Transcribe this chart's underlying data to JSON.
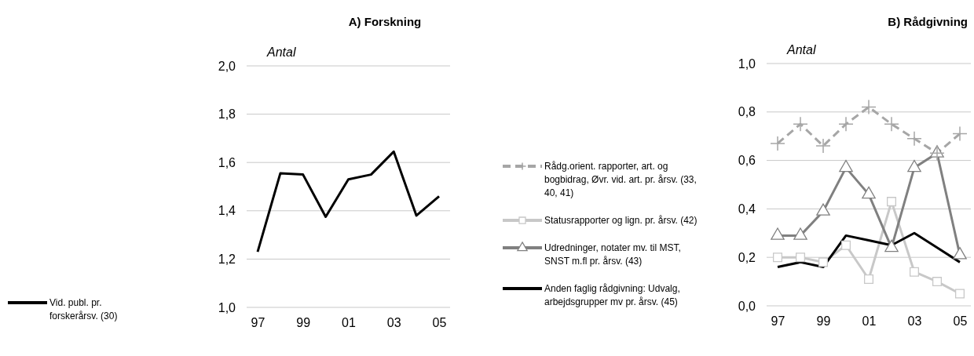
{
  "chart_data": [
    {
      "type": "line",
      "title": "A) Forskning",
      "ylabel": "Antal",
      "categories": [
        "97",
        null,
        "99",
        null,
        "01",
        null,
        "03",
        null,
        "05"
      ],
      "series": [
        {
          "name": "Vid. publ. pr. forskerårsv. (30)",
          "color": "#000000",
          "values": [
            1.23,
            1.555,
            1.55,
            1.375,
            1.53,
            1.55,
            1.645,
            1.38,
            1.46
          ]
        }
      ],
      "ylim": [
        1,
        2
      ],
      "yticks": [
        {
          "value": 1,
          "label": "1,0"
        },
        {
          "value": 1.2,
          "label": "1,2"
        },
        {
          "value": 1.4,
          "label": "1,4"
        },
        {
          "value": 1.6,
          "label": "1,6"
        },
        {
          "value": 1.8,
          "label": "1,8"
        },
        {
          "value": 2,
          "label": "2,0"
        }
      ],
      "grid": "y",
      "legend": "left"
    },
    {
      "type": "line",
      "title": "B) Rådgivning",
      "ylabel": "Antal",
      "categories": [
        "97",
        null,
        "99",
        null,
        "01",
        null,
        "03",
        null,
        "05"
      ],
      "series": [
        {
          "name": "Rådg.orient. rapporter, art. og bogbidrag, Øvr. vid. art. pr. årsv. (33, 40, 41)",
          "color": "#a6a6a6",
          "marker": "cross",
          "line_style": "dashed",
          "values": [
            0.67,
            0.75,
            0.66,
            0.75,
            0.82,
            0.75,
            0.69,
            0.63,
            0.71
          ]
        },
        {
          "name": "Statusrapporter og lign. pr. årsv. (42)",
          "color": "#c8c8c8",
          "marker": "square",
          "values": [
            0.2,
            0.2,
            0.18,
            0.25,
            0.11,
            0.43,
            0.14,
            0.1,
            0.05
          ]
        },
        {
          "name": "Udredninger, notater mv. til MST, SNST m.fl pr. årsv. (43)",
          "color": "#808080",
          "marker": "triangle",
          "values": [
            0.29,
            0.29,
            0.39,
            0.57,
            0.46,
            0.24,
            0.57,
            0.63,
            0.21
          ]
        },
        {
          "name": "Anden faglig rådgivning: Udvalg, arbejdsgrupper mv pr. årsv. (45)",
          "color": "#000000",
          "values": [
            0.16,
            0.18,
            0.16,
            0.29,
            0.27,
            0.25,
            0.3,
            0.24,
            0.18
          ]
        }
      ],
      "ylim": [
        0,
        1
      ],
      "yticks": [
        {
          "value": 0,
          "label": "0,0"
        },
        {
          "value": 0.2,
          "label": "0,2"
        },
        {
          "value": 0.4,
          "label": "0,4"
        },
        {
          "value": 0.6,
          "label": "0,6"
        },
        {
          "value": 0.8,
          "label": "0,8"
        },
        {
          "value": 1,
          "label": "1,0"
        }
      ],
      "grid": "y",
      "legend": "left"
    }
  ]
}
